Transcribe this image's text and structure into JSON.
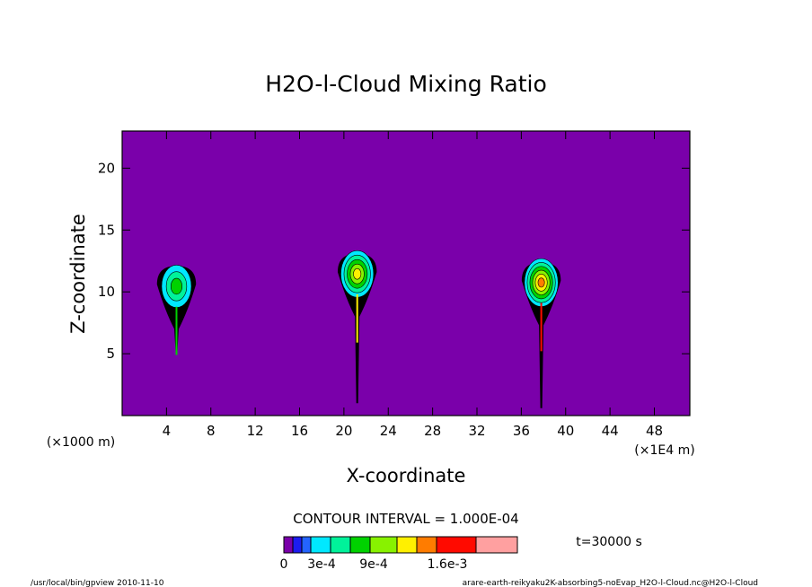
{
  "chart_data": {
    "type": "contour",
    "title": "H2O-l-Cloud Mixing Ratio",
    "xlabel": "X-coordinate",
    "ylabel": "Z-coordinate",
    "x_unit_label": "(×1E4 m)",
    "y_unit_label": "(×1000 m)",
    "xlim": [
      0,
      51.2
    ],
    "ylim": [
      0,
      23
    ],
    "x_ticks": [
      4,
      8,
      12,
      16,
      20,
      24,
      28,
      32,
      36,
      40,
      44,
      48
    ],
    "y_ticks": [
      5,
      10,
      15,
      20
    ],
    "background_color": "#7a00aa",
    "contour_interval_label": "CONTOUR INTERVAL = 1.000E-04",
    "time_label": "t=30000 s",
    "colorbar": {
      "colors": [
        "#7a00aa",
        "#1c1cf0",
        "#2464ff",
        "#00e8ff",
        "#00f29a",
        "#00d200",
        "#88f200",
        "#fff000",
        "#ff7c00",
        "#ff0a00",
        "#ffa0a0"
      ],
      "labels": [
        "0",
        "3e-4",
        "9e-4",
        "1.6e-3"
      ]
    },
    "clouds": [
      {
        "x": 4.9,
        "base": 5.2,
        "top": 12.1,
        "peak_color": "#00d200"
      },
      {
        "x": 21.2,
        "base": 1.0,
        "top": 13.1,
        "peak_color": "#fff000"
      },
      {
        "x": 37.8,
        "base": 0.6,
        "top": 12.4,
        "peak_color": "#ff0a00"
      }
    ]
  },
  "footer": {
    "left": "/usr/local/bin/gpview  2010-11-10",
    "right": "arare-earth-reikyaku2K-absorbing5-noEvap_H2O-l-Cloud.nc@H2O-l-Cloud"
  }
}
